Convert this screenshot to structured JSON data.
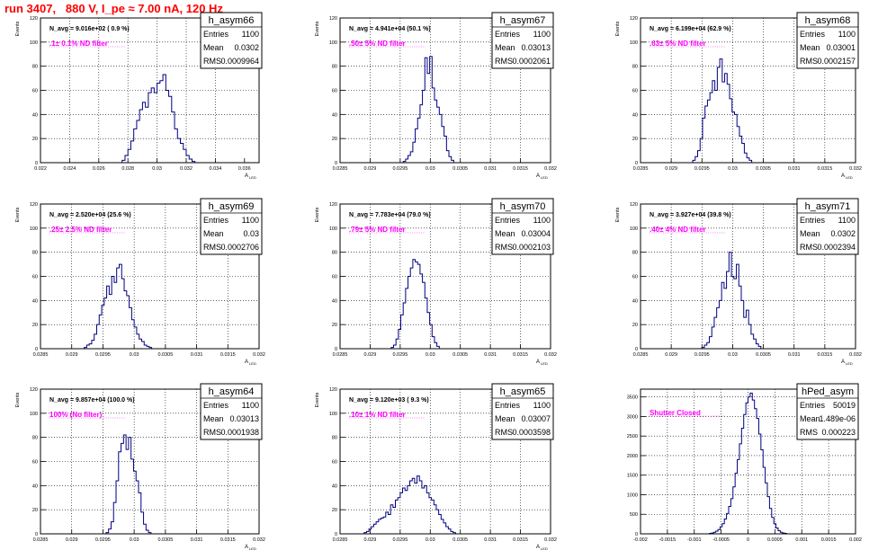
{
  "page_title": "run 3407,   880 V, I_pe ≈ 7.00 nA, 120 Hz",
  "colors": {
    "title": "#ff0000",
    "histogram": "#000080",
    "annotation": "#ff00ff",
    "grid": "#000000"
  },
  "chart_data": [
    {
      "type": "histogram",
      "name": "h_asym66",
      "stats": {
        "Entries": "1100",
        "Mean": "0.0302",
        "RMS": "0.0009964"
      },
      "n_avg": "N_avg = 9.016e+02 ( 0.9 %)",
      "filter_label": ".1± 0.1% ND filter",
      "ylabel": "Events",
      "xlabel": "A_LED",
      "xlim": [
        0.022,
        0.037
      ],
      "ylim": [
        0,
        120
      ],
      "xticks": [
        0.022,
        0.024,
        0.026,
        0.028,
        0.03,
        0.032,
        0.034,
        0.036
      ],
      "xtick_labels": [
        "0.022",
        "0.024",
        "0.026",
        "0.028",
        "0.03",
        "0.032",
        "0.034",
        "0.036"
      ],
      "yticks": [
        0,
        20,
        40,
        60,
        80,
        100,
        120
      ],
      "ytick_labels": [
        "0",
        "20",
        "40",
        "60",
        "80",
        "100",
        "120"
      ],
      "bin_start": 0.0276,
      "bin_width": 0.0002,
      "values": [
        2,
        6,
        11,
        18,
        28,
        35,
        44,
        50,
        46,
        58,
        62,
        58,
        66,
        68,
        73,
        60,
        55,
        42,
        28,
        20,
        16,
        11,
        6,
        3,
        1
      ]
    },
    {
      "type": "histogram",
      "name": "h_asym67",
      "stats": {
        "Entries": "1100",
        "Mean": "0.03013",
        "RMS": "0.0002061"
      },
      "n_avg": "N_avg = 4.941e+04 (50.1 %)",
      "filter_label": ".50± 5% ND filter",
      "ylabel": "Events",
      "xlabel": "A_LED",
      "xlim": [
        0.0285,
        0.032
      ],
      "ylim": [
        0,
        120
      ],
      "xticks": [
        0.0285,
        0.029,
        0.0295,
        0.03,
        0.0305,
        0.031,
        0.0315,
        0.032
      ],
      "xtick_labels": [
        "0.0285",
        "0.029",
        "0.0295",
        "0.03",
        "0.0305",
        "0.031",
        "0.0315",
        "0.032"
      ],
      "yticks": [
        0,
        20,
        40,
        60,
        80,
        100,
        120
      ],
      "ytick_labels": [
        "0",
        "20",
        "40",
        "60",
        "80",
        "100",
        "120"
      ],
      "bin_start": 0.02955,
      "bin_width": 4e-05,
      "values": [
        1,
        3,
        6,
        9,
        17,
        28,
        37,
        48,
        60,
        87,
        74,
        88,
        62,
        52,
        46,
        40,
        30,
        22,
        10,
        5,
        2
      ]
    },
    {
      "type": "histogram",
      "name": "h_asym68",
      "stats": {
        "Entries": "1100",
        "Mean": "0.03001",
        "RMS": "0.0002157"
      },
      "n_avg": "N_avg = 6.199e+04 (62.9 %)",
      "filter_label": ".63± 5% ND filter",
      "ylabel": "Events",
      "xlabel": "A_LED",
      "xlim": [
        0.0285,
        0.032
      ],
      "ylim": [
        0,
        120
      ],
      "xticks": [
        0.0285,
        0.029,
        0.0295,
        0.03,
        0.0305,
        0.031,
        0.0315,
        0.032
      ],
      "xtick_labels": [
        "0.0285",
        "0.029",
        "0.0295",
        "0.03",
        "0.0305",
        "0.031",
        "0.0315",
        "0.032"
      ],
      "yticks": [
        0,
        20,
        40,
        60,
        80,
        100,
        120
      ],
      "ytick_labels": [
        "0",
        "20",
        "40",
        "60",
        "80",
        "100",
        "120"
      ],
      "bin_start": 0.02935,
      "bin_width": 4e-05,
      "values": [
        2,
        5,
        10,
        20,
        37,
        47,
        52,
        58,
        68,
        60,
        79,
        86,
        67,
        74,
        65,
        53,
        42,
        40,
        30,
        22,
        16,
        8,
        4,
        2
      ]
    },
    {
      "type": "histogram",
      "name": "h_asym69",
      "stats": {
        "Entries": "1100",
        "Mean": "0.03",
        "RMS": "0.0002706"
      },
      "n_avg": "N_avg = 2.520e+04 (25.6 %)",
      "filter_label": ".25± 2.5% ND filter",
      "ylabel": "Events",
      "xlabel": "A_LED",
      "xlim": [
        0.0285,
        0.032
      ],
      "ylim": [
        0,
        120
      ],
      "xticks": [
        0.0285,
        0.029,
        0.0295,
        0.03,
        0.0305,
        0.031,
        0.0315,
        0.032
      ],
      "xtick_labels": [
        "0.0285",
        "0.029",
        "0.0295",
        "0.03",
        "0.0305",
        "0.031",
        "0.0315",
        "0.032"
      ],
      "yticks": [
        0,
        20,
        40,
        60,
        80,
        100,
        120
      ],
      "ytick_labels": [
        "0",
        "20",
        "40",
        "60",
        "80",
        "100",
        "120"
      ],
      "bin_start": 0.0292,
      "bin_width": 4e-05,
      "values": [
        1,
        3,
        4,
        7,
        12,
        20,
        28,
        36,
        42,
        52,
        45,
        60,
        55,
        67,
        70,
        58,
        48,
        44,
        34,
        24,
        18,
        12,
        8,
        6,
        3,
        2,
        1
      ]
    },
    {
      "type": "histogram",
      "name": "h_asym70",
      "stats": {
        "Entries": "1100",
        "Mean": "0.03004",
        "RMS": "0.0002103"
      },
      "n_avg": "N_avg = 7.783e+04 (79.0 %)",
      "filter_label": ".79± 5% ND filter",
      "ylabel": "Events",
      "xlabel": "A_LED",
      "xlim": [
        0.0285,
        0.032
      ],
      "ylim": [
        0,
        120
      ],
      "xticks": [
        0.0285,
        0.029,
        0.0295,
        0.03,
        0.0305,
        0.031,
        0.0315,
        0.032
      ],
      "xtick_labels": [
        "0.0285",
        "0.029",
        "0.0295",
        "0.03",
        "0.0305",
        "0.031",
        "0.0315",
        "0.032"
      ],
      "yticks": [
        0,
        20,
        40,
        60,
        80,
        100,
        120
      ],
      "ytick_labels": [
        "0",
        "20",
        "40",
        "60",
        "80",
        "100",
        "120"
      ],
      "bin_start": 0.02935,
      "bin_width": 4e-05,
      "values": [
        1,
        3,
        8,
        16,
        28,
        38,
        50,
        60,
        67,
        74,
        72,
        70,
        62,
        55,
        42,
        30,
        20,
        10,
        5,
        2
      ]
    },
    {
      "type": "histogram",
      "name": "h_asym71",
      "stats": {
        "Entries": "1100",
        "Mean": "0.0302",
        "RMS": "0.0002394"
      },
      "n_avg": "N_avg = 3.927e+04 (39.8 %)",
      "filter_label": ".40± 4% ND filter",
      "ylabel": "Events",
      "xlabel": "A_LED",
      "xlim": [
        0.0285,
        0.032
      ],
      "ylim": [
        0,
        120
      ],
      "xticks": [
        0.0285,
        0.029,
        0.0295,
        0.03,
        0.0305,
        0.031,
        0.0315,
        0.032
      ],
      "xtick_labels": [
        "0.0285",
        "0.029",
        "0.0295",
        "0.03",
        "0.0305",
        "0.031",
        "0.0315",
        "0.032"
      ],
      "yticks": [
        0,
        20,
        40,
        60,
        80,
        100,
        120
      ],
      "ytick_labels": [
        "0",
        "20",
        "40",
        "60",
        "80",
        "100",
        "120"
      ],
      "bin_start": 0.0295,
      "bin_width": 4e-05,
      "values": [
        1,
        3,
        5,
        10,
        18,
        26,
        34,
        40,
        55,
        50,
        64,
        80,
        60,
        58,
        70,
        52,
        40,
        26,
        32,
        20,
        12,
        8,
        4,
        2
      ]
    },
    {
      "type": "histogram",
      "name": "h_asym64",
      "stats": {
        "Entries": "1100",
        "Mean": "0.03013",
        "RMS": "0.0001938"
      },
      "n_avg": "N_avg = 9.857e+04 (100.0 %)",
      "filter_label": "100% (No filter)",
      "ylabel": "Events",
      "xlabel": "A_LED",
      "xlim": [
        0.0285,
        0.032
      ],
      "ylim": [
        0,
        120
      ],
      "xticks": [
        0.0285,
        0.029,
        0.0295,
        0.03,
        0.0305,
        0.031,
        0.0315,
        0.032
      ],
      "xtick_labels": [
        "0.0285",
        "0.029",
        "0.0295",
        "0.03",
        "0.0305",
        "0.031",
        "0.0315",
        "0.032"
      ],
      "yticks": [
        0,
        20,
        40,
        60,
        80,
        100,
        120
      ],
      "ytick_labels": [
        "0",
        "20",
        "40",
        "60",
        "80",
        "100",
        "120"
      ],
      "bin_start": 0.02955,
      "bin_width": 4e-05,
      "values": [
        1,
        4,
        10,
        26,
        44,
        68,
        75,
        82,
        70,
        80,
        62,
        52,
        44,
        34,
        18,
        8,
        3,
        1
      ]
    },
    {
      "type": "histogram",
      "name": "h_asym65",
      "stats": {
        "Entries": "1100",
        "Mean": "0.03007",
        "RMS": "0.0003598"
      },
      "n_avg": "N_avg = 9.120e+03 ( 9.3 %)",
      "filter_label": ".10± 1% ND filter",
      "ylabel": "Events",
      "xlabel": "A_LED",
      "xlim": [
        0.0285,
        0.032
      ],
      "ylim": [
        0,
        120
      ],
      "xticks": [
        0.0285,
        0.029,
        0.0295,
        0.03,
        0.0305,
        0.031,
        0.0315,
        0.032
      ],
      "xtick_labels": [
        "0.0285",
        "0.029",
        "0.0295",
        "0.03",
        "0.0305",
        "0.031",
        "0.0315",
        "0.032"
      ],
      "yticks": [
        0,
        20,
        40,
        60,
        80,
        100,
        120
      ],
      "ytick_labels": [
        "0",
        "20",
        "40",
        "60",
        "80",
        "100",
        "120"
      ],
      "bin_start": 0.0289,
      "bin_width": 4e-05,
      "values": [
        1,
        2,
        4,
        6,
        8,
        10,
        12,
        13,
        14,
        18,
        16,
        24,
        22,
        28,
        30,
        34,
        38,
        36,
        40,
        44,
        46,
        42,
        48,
        44,
        38,
        40,
        34,
        30,
        28,
        24,
        20,
        16,
        12,
        9,
        6,
        4,
        2,
        1
      ]
    },
    {
      "type": "histogram",
      "name": "hPed_asym",
      "stats": {
        "Entries": "50019",
        "Mean": "1.489e-06",
        "RMS": "0.000223"
      },
      "n_avg": "",
      "filter_label": "Shutter Closed",
      "ylabel": "",
      "xlabel": "",
      "xlim": [
        -0.002,
        0.002
      ],
      "ylim": [
        0,
        3700
      ],
      "xticks": [
        -0.002,
        -0.0015,
        -0.001,
        -0.0005,
        0,
        0.0005,
        0.001,
        0.0015,
        0.002
      ],
      "xtick_labels": [
        "-0.002",
        "-0.0015",
        "-0.001",
        "-0.0005",
        "0",
        "0.0005",
        "0.001",
        "0.0015",
        "0.002"
      ],
      "yticks": [
        0,
        500,
        1000,
        1500,
        2000,
        2500,
        3000,
        3500
      ],
      "ytick_labels": [
        "0",
        "500",
        "1000",
        "1500",
        "2000",
        "2500",
        "3000",
        "3500"
      ],
      "bin_start": -0.00072,
      "bin_width": 4e-05,
      "values": [
        10,
        20,
        40,
        70,
        110,
        180,
        260,
        380,
        520,
        700,
        900,
        1200,
        1550,
        1900,
        2300,
        2700,
        3050,
        3350,
        3500,
        3600,
        3420,
        3200,
        2950,
        2550,
        2150,
        1700,
        1300,
        950,
        650,
        420,
        260,
        150,
        80,
        40,
        20,
        10
      ]
    }
  ]
}
